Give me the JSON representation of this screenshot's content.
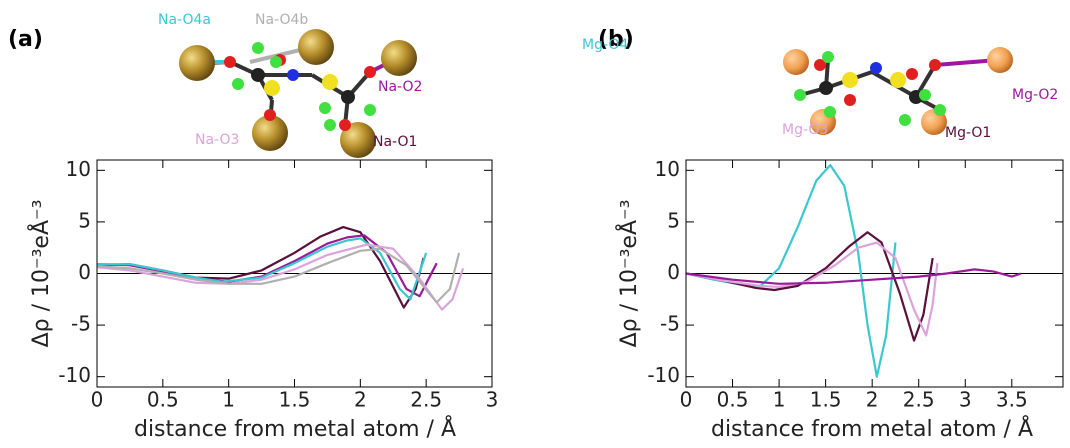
{
  "chart_data": [
    {
      "type": "line",
      "panel_label": "(a)",
      "xlabel": "distance from metal atom / Å",
      "ylabel": "Δρ / 10⁻³eÅ⁻³",
      "xlim": [
        0,
        3
      ],
      "xticks": [
        0,
        0.5,
        1,
        1.5,
        2,
        2.5,
        3
      ],
      "ylim": [
        -11,
        11
      ],
      "yticks": [
        -10,
        -5,
        0,
        5,
        10
      ],
      "zero_line": true,
      "series": [
        {
          "name": "Na-O1",
          "color": "#5a0f3c",
          "x": [
            0,
            0.25,
            0.5,
            0.75,
            1,
            1.25,
            1.5,
            1.7,
            1.87,
            2.0,
            2.15,
            2.33,
            2.42,
            2.48
          ],
          "values": [
            0.8,
            0.9,
            0.3,
            -0.4,
            -0.5,
            0.3,
            2.0,
            3.6,
            4.5,
            4.0,
            1.2,
            -3.3,
            -1.5,
            1.5
          ]
        },
        {
          "name": "Na-O2",
          "color": "#9b199b",
          "x": [
            0,
            0.25,
            0.5,
            0.75,
            1,
            1.25,
            1.5,
            1.75,
            1.9,
            2.03,
            2.2,
            2.35,
            2.45,
            2.58
          ],
          "values": [
            0.9,
            0.8,
            0.2,
            -0.5,
            -0.8,
            -0.3,
            1.2,
            2.9,
            3.5,
            3.7,
            2.0,
            -1.5,
            -2.2,
            1.0
          ]
        },
        {
          "name": "Na-O4a",
          "color": "#3ac8d0",
          "x": [
            0,
            0.25,
            0.5,
            0.75,
            0.95,
            1.25,
            1.5,
            1.75,
            1.9,
            2.0,
            2.15,
            2.3,
            2.38,
            2.5
          ],
          "values": [
            0.9,
            0.9,
            0.3,
            -0.4,
            -0.8,
            -0.4,
            1.0,
            2.6,
            3.2,
            3.4,
            2.0,
            -1.5,
            -2.5,
            2.0
          ]
        },
        {
          "name": "Na-O3",
          "color": "#dba3dc",
          "x": [
            0,
            0.25,
            0.5,
            0.75,
            1,
            1.25,
            1.5,
            1.75,
            2.05,
            2.25,
            2.45,
            2.62,
            2.7,
            2.78
          ],
          "values": [
            0.6,
            0.3,
            -0.3,
            -0.9,
            -1.0,
            -0.6,
            0.4,
            1.8,
            2.8,
            2.4,
            -0.5,
            -3.5,
            -2.5,
            0.5
          ]
        },
        {
          "name": "Na-O4b",
          "color": "#b0b0b0",
          "x": [
            0,
            0.25,
            0.5,
            0.75,
            1,
            1.25,
            1.5,
            1.75,
            2.0,
            2.15,
            2.35,
            2.58,
            2.68,
            2.75
          ],
          "values": [
            0.7,
            0.5,
            0,
            -0.6,
            -1.0,
            -1.0,
            -0.3,
            1.0,
            2.2,
            2.4,
            0.8,
            -2.8,
            -1.5,
            2.0
          ]
        }
      ]
    },
    {
      "type": "line",
      "panel_label": "(b)",
      "xlabel": "distance from metal atom / Å",
      "ylabel": "Δρ / 10⁻³eÅ⁻³",
      "xlim": [
        0,
        4.05
      ],
      "xticks": [
        0,
        0.5,
        1,
        1.5,
        2,
        2.5,
        3,
        3.5
      ],
      "ylim": [
        -11,
        11
      ],
      "yticks": [
        -10,
        -5,
        0,
        5,
        10
      ],
      "zero_line": true,
      "series": [
        {
          "name": "Mg-O4",
          "color": "#3ac8d0",
          "x": [
            0,
            0.3,
            0.6,
            0.8,
            1.0,
            1.2,
            1.4,
            1.55,
            1.7,
            1.85,
            1.95,
            2.05,
            2.15,
            2.25
          ],
          "values": [
            0,
            -0.6,
            -1.1,
            -1.2,
            0.5,
            4.5,
            9.0,
            10.5,
            8.5,
            2.0,
            -5,
            -10,
            -6,
            3
          ]
        },
        {
          "name": "Mg-O1",
          "color": "#5a0f3c",
          "x": [
            0,
            0.4,
            0.75,
            0.95,
            1.2,
            1.5,
            1.75,
            1.95,
            2.1,
            2.3,
            2.45,
            2.55,
            2.65
          ],
          "values": [
            0,
            -0.7,
            -1.4,
            -1.6,
            -1.2,
            0.5,
            2.6,
            4.0,
            3.0,
            -2.0,
            -6.5,
            -4,
            1.5
          ]
        },
        {
          "name": "Mg-O3",
          "color": "#dba3dc",
          "x": [
            0,
            0.4,
            0.8,
            1.0,
            1.3,
            1.6,
            1.85,
            2.05,
            2.25,
            2.45,
            2.58,
            2.65,
            2.7
          ],
          "values": [
            0,
            -0.7,
            -1.2,
            -1.3,
            -0.8,
            0.8,
            2.5,
            3.0,
            1.5,
            -3.5,
            -6.0,
            -3,
            1.0
          ]
        },
        {
          "name": "Mg-O2",
          "color": "#9b199b",
          "x": [
            0,
            0.5,
            1.0,
            1.5,
            2.0,
            2.5,
            2.8,
            3.1,
            3.3,
            3.5,
            3.6
          ],
          "values": [
            0,
            -0.6,
            -1.0,
            -0.9,
            -0.6,
            -0.3,
            0,
            0.4,
            0.2,
            -0.3,
            0
          ]
        }
      ]
    }
  ]
}
